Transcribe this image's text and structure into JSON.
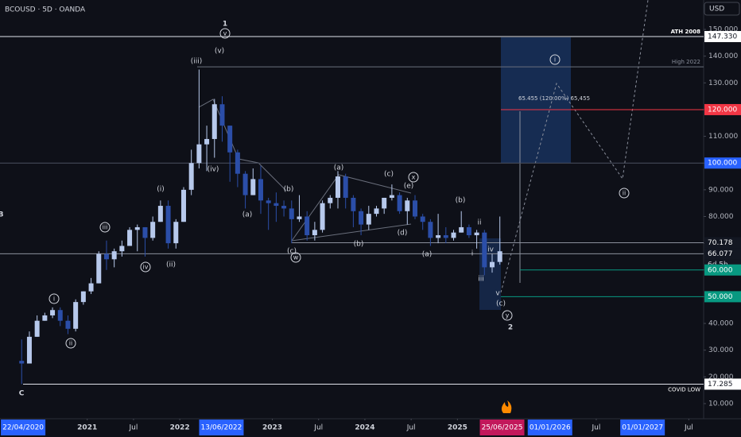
{
  "chart_data": {
    "type": "candlestick",
    "symbol": "BCOUSD · 5D · OANDA",
    "currency": "USD",
    "x": [
      "2020-04",
      "2020-05",
      "2020-06",
      "2020-07",
      "2020-08",
      "2020-09",
      "2020-10",
      "2020-11",
      "2020-12",
      "2021-01",
      "2021-02",
      "2021-03",
      "2021-04",
      "2021-05",
      "2021-06",
      "2021-07",
      "2021-08",
      "2021-09",
      "2021-10",
      "2021-11",
      "2021-12",
      "2022-01",
      "2022-02",
      "2022-03",
      "2022-04",
      "2022-05",
      "2022-06",
      "2022-07",
      "2022-08",
      "2022-09",
      "2022-10",
      "2022-11",
      "2022-12",
      "2023-01",
      "2023-02",
      "2023-03",
      "2023-04",
      "2023-05",
      "2023-06",
      "2023-07",
      "2023-08",
      "2023-09",
      "2023-10",
      "2023-11",
      "2023-12",
      "2024-01",
      "2024-02",
      "2024-03",
      "2024-04",
      "2024-05",
      "2024-06",
      "2024-07",
      "2024-08",
      "2024-09",
      "2024-10",
      "2024-11",
      "2024-12",
      "2025-01",
      "2025-02",
      "2025-03",
      "2025-04",
      "2025-05",
      "2025-06"
    ],
    "open": [
      26,
      25,
      35,
      41,
      43,
      45,
      41,
      38,
      48,
      52,
      55,
      66,
      64,
      67,
      69,
      75,
      76,
      72,
      78,
      84,
      70,
      78,
      90,
      100,
      107,
      109,
      122,
      114,
      104,
      96,
      88,
      94,
      86,
      85,
      84,
      83,
      79,
      80,
      73,
      75,
      85,
      87,
      95,
      87,
      82,
      77,
      81,
      83,
      87,
      88,
      82,
      86,
      80,
      78,
      72,
      73,
      72,
      74,
      76,
      73,
      74,
      61,
      63
    ],
    "high": [
      34,
      37,
      43,
      44,
      46,
      46,
      43,
      49,
      52,
      57,
      67,
      71,
      68,
      71,
      76,
      77,
      76,
      80,
      86,
      86,
      79,
      91,
      105,
      135,
      114,
      124,
      125,
      114,
      105,
      97,
      98,
      99,
      87,
      89,
      86,
      86,
      88,
      82,
      78,
      86,
      88,
      97,
      96,
      88,
      83,
      84,
      84,
      87,
      92,
      89,
      87,
      88,
      81,
      79,
      81,
      76,
      75,
      82,
      77,
      75,
      75,
      66,
      80
    ],
    "low": [
      17.3,
      25,
      35,
      41,
      42,
      39,
      36,
      37,
      47,
      51,
      55,
      60,
      61,
      65,
      69,
      67,
      65,
      71,
      78,
      68,
      68,
      78,
      88,
      98,
      97,
      102,
      108,
      93,
      91,
      83,
      88,
      81,
      75,
      78,
      80,
      70,
      78,
      71,
      71,
      74,
      83,
      83,
      83,
      76,
      73,
      75,
      80,
      81,
      86,
      81,
      77,
      79,
      75,
      69,
      70,
      70,
      71,
      74,
      72,
      68,
      58,
      59,
      62
    ],
    "close": [
      25,
      35,
      41,
      43,
      45,
      41,
      38,
      48,
      52,
      55,
      66,
      64,
      67,
      69,
      75,
      76,
      72,
      78,
      84,
      70,
      78,
      90,
      100,
      107,
      109,
      122,
      114,
      104,
      96,
      88,
      94,
      86,
      85,
      84,
      83,
      79,
      80,
      73,
      75,
      85,
      87,
      95,
      87,
      82,
      77,
      81,
      83,
      87,
      88,
      82,
      86,
      80,
      78,
      72,
      73,
      72,
      74,
      76,
      73,
      74,
      61,
      63,
      67
    ],
    "up_color": "#b7c9ec",
    "down_color": "#2b4ea8",
    "xlim": [
      "2020-01-22",
      "2027-08-29"
    ],
    "ylim": [
      0,
      160
    ],
    "yticks": [
      {
        "value": 10,
        "label": "10.000"
      },
      {
        "value": 20,
        "label": "20.000"
      },
      {
        "value": 30,
        "label": "30.000"
      },
      {
        "value": 40,
        "label": "40.000"
      },
      {
        "value": 50,
        "label": "50.000"
      },
      {
        "value": 60,
        "label": "60.000"
      },
      {
        "value": 70,
        "label": "70.000"
      },
      {
        "value": 80,
        "label": "80.000"
      },
      {
        "value": 90,
        "label": "90.000"
      },
      {
        "value": 100,
        "label": "100.000"
      },
      {
        "value": 110,
        "label": "110.000"
      },
      {
        "value": 120,
        "label": "120.000"
      },
      {
        "value": 130,
        "label": "130.000"
      },
      {
        "value": 140,
        "label": "140.000"
      },
      {
        "value": 150,
        "label": "150.000"
      }
    ],
    "xticks": [
      {
        "value": "2021-01-01",
        "label": "2021"
      },
      {
        "value": "2021-07-01",
        "label": "Jul"
      },
      {
        "value": "2022-01-01",
        "label": "2022"
      },
      {
        "value": "2023-01-01",
        "label": "2023"
      },
      {
        "value": "2023-07-01",
        "label": "Jul"
      },
      {
        "value": "2024-01-01",
        "label": "2024"
      },
      {
        "value": "2024-07-01",
        "label": "Jul"
      },
      {
        "value": "2025-01-01",
        "label": "2025"
      },
      {
        "value": "2026-07-01",
        "label": "Jul"
      },
      {
        "value": "2027-07-01",
        "label": "Jul"
      }
    ],
    "date_marks": [
      {
        "value": "2020-04-22",
        "label": "22/04/2020",
        "color": "#2962ff"
      },
      {
        "value": "2022-06-13",
        "label": "13/06/2022",
        "color": "#2962ff"
      },
      {
        "value": "2025-06-25",
        "label": "25/06/2025",
        "color": "#c2185b"
      },
      {
        "value": "2026-01-01",
        "label": "01/01/2026",
        "color": "#2962ff"
      },
      {
        "value": "2027-01-01",
        "label": "01/01/2027",
        "color": "#2962ff"
      }
    ],
    "levels": [
      {
        "value": 147.33,
        "label": "147.330",
        "name": "ATH 2008",
        "color": "#e0e3eb",
        "tag_color": "#ffffff"
      },
      {
        "value": 136,
        "name": "High 2022",
        "color": "#6a6f7c"
      },
      {
        "value": 120,
        "label": "120.000",
        "color": "#f23645",
        "tag_color": "#f23645"
      },
      {
        "value": 100,
        "label": "100.000",
        "color": "#4a5060",
        "tag_color": "#2962ff"
      },
      {
        "value": 70.178,
        "label": "70.178",
        "color": "#8a8f9c",
        "tag_color": "#131722"
      },
      {
        "value": 66.077,
        "label": "66.077",
        "color": "#8a8f9c",
        "tag_color": "#131722"
      },
      {
        "value": 60,
        "label": "60.000",
        "color": "#089981",
        "tag_color": "#089981"
      },
      {
        "value": 50,
        "label": "50.000",
        "color": "#089981",
        "tag_color": "#089981"
      },
      {
        "value": 17.285,
        "label": "17.285",
        "name": "COVID LOW",
        "color": "#e0e3eb",
        "tag_color": "#ffffff"
      }
    ],
    "countdown": "6d 5h",
    "measure": "65.455 (120.00%) 65,455",
    "annotations": [
      {
        "label": "1",
        "circled": false
      },
      {
        "label": "v",
        "circled": true
      },
      {
        "label": "(v)",
        "circled": false
      },
      {
        "label": "(iii)",
        "circled": false
      },
      {
        "label": "(iv)",
        "circled": false
      },
      {
        "label": "(i)",
        "circled": false
      },
      {
        "label": "iii",
        "circled": true
      },
      {
        "label": "(ii)",
        "circled": false
      },
      {
        "label": "iv",
        "circled": true
      },
      {
        "label": "i",
        "circled": true
      },
      {
        "label": "ii",
        "circled": true
      },
      {
        "label": "C",
        "circled": false
      },
      {
        "label": "B",
        "circled": false
      },
      {
        "label": "(a)",
        "circled": false
      },
      {
        "label": "(b)",
        "circled": false
      },
      {
        "label": "(c)",
        "circled": false
      },
      {
        "label": "w",
        "circled": true
      },
      {
        "label": "(a)",
        "circled": false
      },
      {
        "label": "(b)",
        "circled": false
      },
      {
        "label": "(c)",
        "circled": false
      },
      {
        "label": "x",
        "circled": true
      },
      {
        "label": "(e)",
        "circled": false
      },
      {
        "label": "(d)",
        "circled": false
      },
      {
        "label": "(b)",
        "circled": false
      },
      {
        "label": "(a)",
        "circled": false
      },
      {
        "label": "ii",
        "circled": false
      },
      {
        "label": "i",
        "circled": false
      },
      {
        "label": "iv",
        "circled": false
      },
      {
        "label": "iii",
        "circled": false
      },
      {
        "label": "v",
        "circled": false
      },
      {
        "label": "(c)",
        "circled": false
      },
      {
        "label": "y",
        "circled": true
      },
      {
        "label": "2",
        "circled": false
      },
      {
        "label": "i",
        "circled": true
      },
      {
        "label": "ii",
        "circled": true
      }
    ]
  }
}
